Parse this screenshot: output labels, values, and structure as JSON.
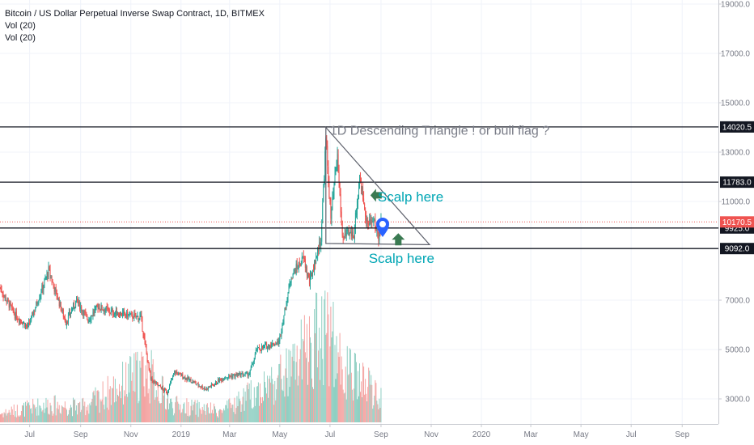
{
  "legend": {
    "symbol": "Bitcoin / US Dollar Perpetual Inverse Swap Contract, 1D, BITMEX",
    "vol1": "Vol (20)",
    "vol2": "Vol (20)"
  },
  "chart_data": {
    "type": "candlestick",
    "title": "Bitcoin / US Dollar Perpetual Inverse Swap Contract, 1D, BITMEX",
    "ylim": [
      1500,
      19500
    ],
    "y_ticks": [
      {
        "value": 19000,
        "label": "19000.0"
      },
      {
        "value": 17000,
        "label": "17000.0"
      },
      {
        "value": 15000,
        "label": "15000.0"
      },
      {
        "value": 13000,
        "label": "13000.0"
      },
      {
        "value": 11000,
        "label": "11000.0"
      },
      {
        "value": 7000,
        "label": "7000.0"
      },
      {
        "value": 5000,
        "label": "5000.0"
      },
      {
        "value": 3000,
        "label": "3000.0"
      }
    ],
    "x_ticks": [
      {
        "date": "2018-07-01",
        "label": "Jul"
      },
      {
        "date": "2018-09-01",
        "label": "Sep"
      },
      {
        "date": "2018-11-01",
        "label": "Nov"
      },
      {
        "date": "2019-01-01",
        "label": "2019"
      },
      {
        "date": "2019-03-01",
        "label": "Mar"
      },
      {
        "date": "2019-05-01",
        "label": "May"
      },
      {
        "date": "2019-07-01",
        "label": "Jul"
      },
      {
        "date": "2019-09-01",
        "label": "Sep"
      },
      {
        "date": "2019-11-01",
        "label": "Nov"
      },
      {
        "date": "2020-01-01",
        "label": "2020"
      },
      {
        "date": "2020-03-01",
        "label": "Mar"
      },
      {
        "date": "2020-05-01",
        "label": "May"
      },
      {
        "date": "2020-07-01",
        "label": "Jul"
      },
      {
        "date": "2020-09-01",
        "label": "Sep"
      }
    ],
    "x_range": [
      "2018-05-26",
      "2020-10-15"
    ],
    "price_path": [
      {
        "date": "2018-05-26",
        "value": 7500
      },
      {
        "date": "2018-06-13",
        "value": 6400
      },
      {
        "date": "2018-06-29",
        "value": 5900
      },
      {
        "date": "2018-07-24",
        "value": 8200
      },
      {
        "date": "2018-08-14",
        "value": 6100
      },
      {
        "date": "2018-08-27",
        "value": 7000
      },
      {
        "date": "2018-09-10",
        "value": 6200
      },
      {
        "date": "2018-09-22",
        "value": 6750
      },
      {
        "date": "2018-10-10",
        "value": 6500
      },
      {
        "date": "2018-11-13",
        "value": 6300
      },
      {
        "date": "2018-11-25",
        "value": 3800
      },
      {
        "date": "2018-12-15",
        "value": 3250
      },
      {
        "date": "2018-12-24",
        "value": 4100
      },
      {
        "date": "2019-01-31",
        "value": 3400
      },
      {
        "date": "2019-02-24",
        "value": 3900
      },
      {
        "date": "2019-03-25",
        "value": 4000
      },
      {
        "date": "2019-04-03",
        "value": 5000
      },
      {
        "date": "2019-04-30",
        "value": 5300
      },
      {
        "date": "2019-05-15",
        "value": 8000
      },
      {
        "date": "2019-05-30",
        "value": 8700
      },
      {
        "date": "2019-06-06",
        "value": 7700
      },
      {
        "date": "2019-06-20",
        "value": 9500
      },
      {
        "date": "2019-06-26",
        "value": 13500
      },
      {
        "date": "2019-07-02",
        "value": 10300
      },
      {
        "date": "2019-07-10",
        "value": 12800
      },
      {
        "date": "2019-07-16",
        "value": 9600
      },
      {
        "date": "2019-07-30",
        "value": 9700
      },
      {
        "date": "2019-08-06",
        "value": 12000
      },
      {
        "date": "2019-08-16",
        "value": 10000
      },
      {
        "date": "2019-08-22",
        "value": 10300
      },
      {
        "date": "2019-08-29",
        "value": 9600
      },
      {
        "date": "2019-09-01",
        "value": 10100
      }
    ],
    "volume_scale_max": 100,
    "volume_path": [
      {
        "date": "2018-05-26",
        "value": 8
      },
      {
        "date": "2018-07-20",
        "value": 16
      },
      {
        "date": "2018-09-05",
        "value": 14
      },
      {
        "date": "2018-11-20",
        "value": 48
      },
      {
        "date": "2018-12-20",
        "value": 16
      },
      {
        "date": "2019-02-20",
        "value": 10
      },
      {
        "date": "2019-04-02",
        "value": 28
      },
      {
        "date": "2019-05-14",
        "value": 46
      },
      {
        "date": "2019-06-26",
        "value": 90
      },
      {
        "date": "2019-07-16",
        "value": 48
      },
      {
        "date": "2019-08-15",
        "value": 34
      },
      {
        "date": "2019-09-01",
        "value": 20
      }
    ],
    "horizontal_levels": [
      {
        "value": 14020.5,
        "label": "14020.5"
      },
      {
        "value": 11783.0,
        "label": "11783.0"
      },
      {
        "value": 9925.0,
        "label": "9925.0"
      },
      {
        "value": 9092.0,
        "label": "9092.0"
      }
    ],
    "last_price": {
      "value": 10170.5,
      "label": "10170.5"
    },
    "triangle": [
      {
        "date": "2019-06-26",
        "value": 14000
      },
      {
        "date": "2019-10-30",
        "value": 9250
      },
      {
        "date": "2019-06-26",
        "value": 9300
      }
    ],
    "annotations": [
      {
        "text": "1D Descending Triangle ! or  bull flag ?",
        "date": "2019-07-01",
        "value": 13900,
        "color": "#787b86"
      },
      {
        "text": "Scalp here",
        "date": "2019-08-28",
        "value": 11200,
        "color": "#00a6b4"
      },
      {
        "text": "Scalp here",
        "date": "2019-08-17",
        "value": 8700,
        "color": "#00a6b4"
      }
    ],
    "arrows": [
      {
        "direction": "left",
        "date": "2019-08-26",
        "value": 11250,
        "color": "#3a7a52"
      },
      {
        "direction": "up",
        "date": "2019-09-22",
        "value": 9450,
        "color": "#3a7a52"
      }
    ],
    "marker": {
      "icon": "map-pin-icon",
      "date": "2019-09-03",
      "value": 9950,
      "color": "#2962ff"
    },
    "colors": {
      "up": "#26a69a",
      "down": "#ef5350",
      "up_vol": "#8fcfc2",
      "down_vol": "#f4a3a1"
    }
  }
}
